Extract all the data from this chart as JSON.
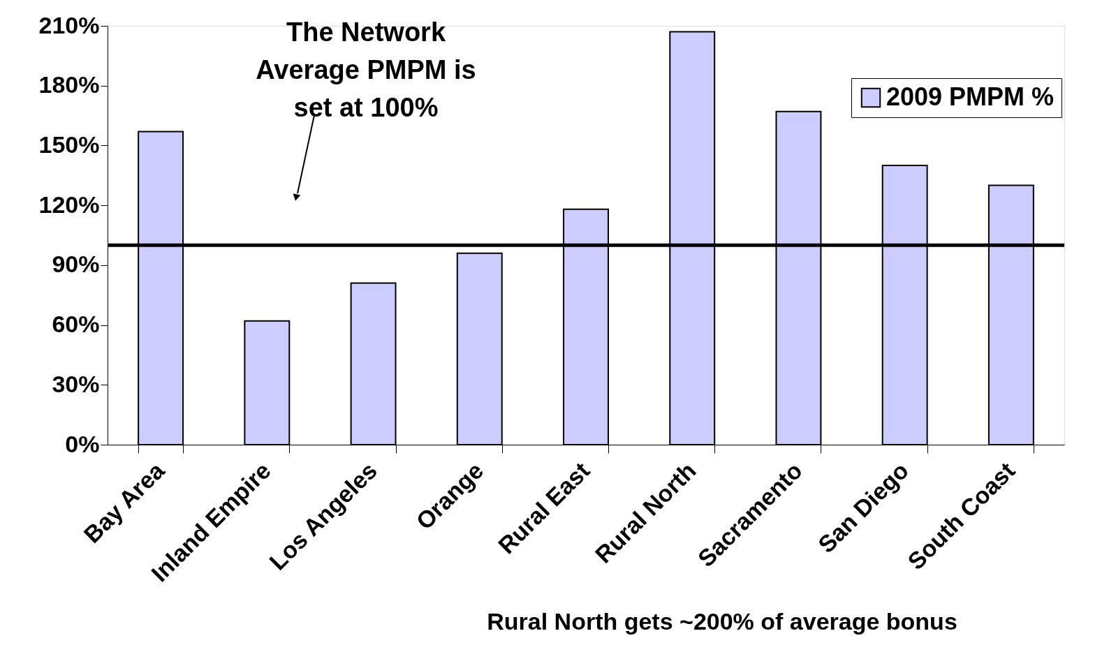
{
  "chart_data": {
    "type": "bar",
    "categories": [
      "Bay Area",
      "Inland Empire",
      "Los Angeles",
      "Orange",
      "Rural East",
      "Rural North",
      "Sacramento",
      "San Diego",
      "South Coast"
    ],
    "series": [
      {
        "name": "2009 PMPM %",
        "color": "#ccccff",
        "values": [
          157,
          62,
          81,
          96,
          118,
          207,
          167,
          140,
          130
        ]
      }
    ],
    "ylim": [
      0,
      210
    ],
    "yticks": [
      {
        "value": 0,
        "label": "0%"
      },
      {
        "value": 30,
        "label": "30%"
      },
      {
        "value": 60,
        "label": "60%"
      },
      {
        "value": 90,
        "label": "90%"
      },
      {
        "value": 120,
        "label": "120%"
      },
      {
        "value": 150,
        "label": "150%"
      },
      {
        "value": 180,
        "label": "180%"
      },
      {
        "value": 210,
        "label": "210%"
      }
    ],
    "ref_lines": [
      {
        "axis": "y",
        "value": 100,
        "label": null,
        "color": "#000000"
      }
    ],
    "annotations": [
      "The Network Average PMPM is set at 100%",
      "Rural North gets ~200% of average bonus"
    ],
    "legend": "top right",
    "grid": false
  }
}
